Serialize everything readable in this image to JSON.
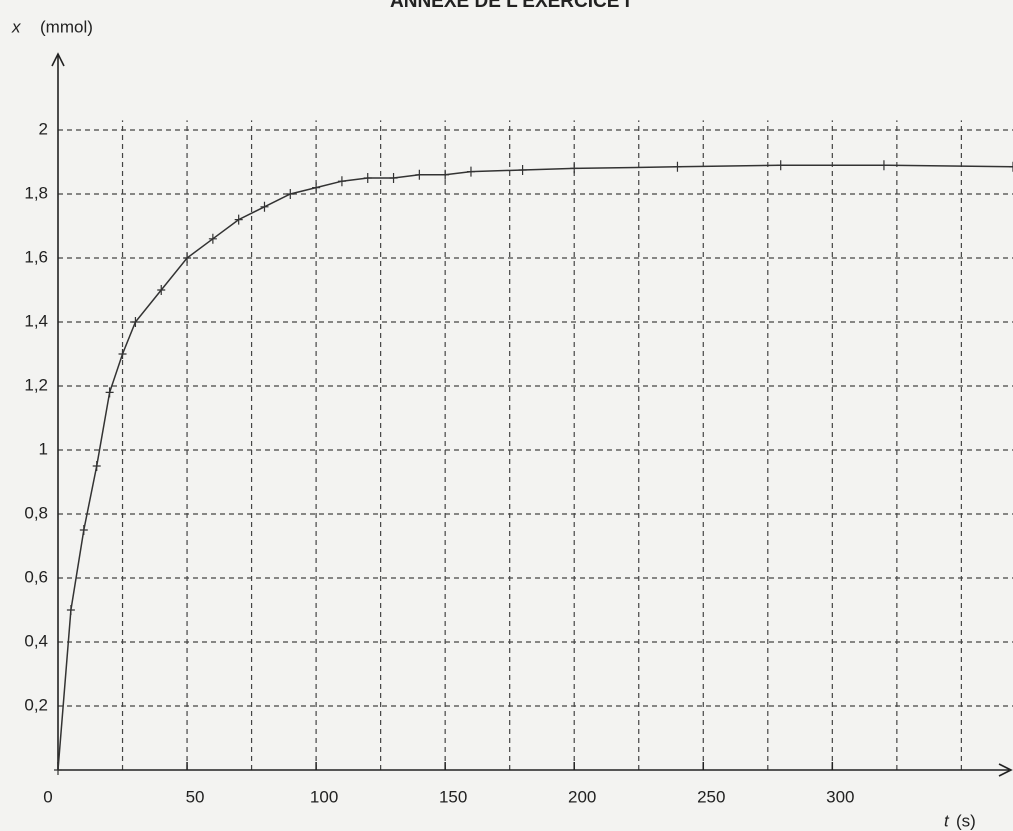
{
  "chart_data": {
    "type": "line",
    "title": "ANNEXE DE L'EXERCICE I",
    "y_label": "x",
    "y_unit": "(mmol)",
    "x_label": "t",
    "x_unit": "(s)",
    "x": [
      0,
      5,
      10,
      15,
      20,
      25,
      30,
      40,
      50,
      60,
      70,
      80,
      90,
      100,
      110,
      120,
      130,
      140,
      150,
      160,
      180,
      200,
      240,
      280,
      320,
      370
    ],
    "series": [
      {
        "name": "x",
        "color": "#333333",
        "values": [
          0,
          0.5,
          0.75,
          0.95,
          1.18,
          1.3,
          1.4,
          1.5,
          1.6,
          1.66,
          1.72,
          1.76,
          1.8,
          1.82,
          1.84,
          1.85,
          1.85,
          1.86,
          1.86,
          1.87,
          1.875,
          1.88,
          1.885,
          1.89,
          1.89,
          1.885
        ]
      }
    ],
    "xlim": [
      0,
      370
    ],
    "ylim": [
      0,
      2.2
    ],
    "xticks": [
      0,
      50,
      100,
      150,
      200,
      250,
      300
    ],
    "xgrid": [
      25,
      50,
      75,
      100,
      125,
      150,
      175,
      200,
      225,
      250,
      275,
      300,
      325,
      350
    ],
    "yticks": [
      {
        "value": 0.2,
        "label": "0,2"
      },
      {
        "value": 0.4,
        "label": "0,4"
      },
      {
        "value": 0.6,
        "label": "0,6"
      },
      {
        "value": 0.8,
        "label": "0,8"
      },
      1,
      {
        "value": 1.2,
        "label": "1,2"
      },
      {
        "value": 1.4,
        "label": "1,4"
      },
      {
        "value": 1.6,
        "label": "1,6"
      },
      {
        "value": 1.8,
        "label": "1,8"
      },
      2
    ],
    "grid": true
  }
}
